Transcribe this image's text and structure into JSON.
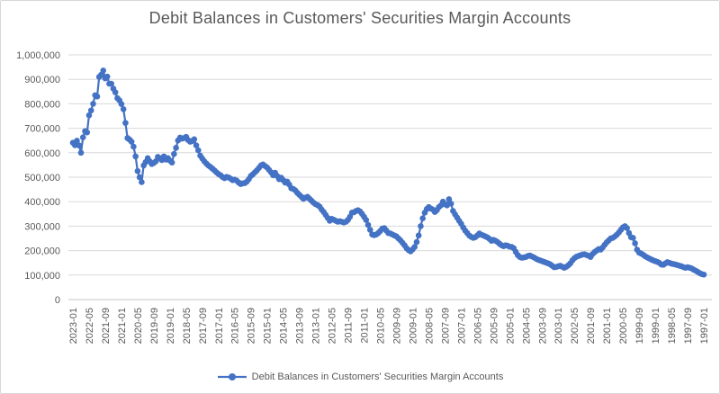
{
  "title": "Debit Balances in Customers' Securities Margin Accounts",
  "legend": {
    "label": "Debit Balances in Customers' Securities Margin Accounts"
  },
  "colors": {
    "series": "#4472C4",
    "gridline": "#d9d9d9",
    "axis_line": "#c6c6c6",
    "text": "#595959",
    "background": "#ffffff"
  },
  "chart_data": {
    "type": "line",
    "title": "Debit Balances in Customers' Securities Margin Accounts",
    "xlabel": "",
    "ylabel": "",
    "ylim": [
      0,
      1000000
    ],
    "grid": "horizontal",
    "legend_position": "bottom",
    "x_order_note": "monthly values, reverse-chronological left to right",
    "x_start": "2023-01",
    "x_end": "1997-01",
    "x_step_months": -1,
    "x_tick_every": 8,
    "x_tick_labels": [
      "2023-01",
      "2022-05",
      "2021-09",
      "2021-01",
      "2020-05",
      "2019-09",
      "2019-01",
      "2018-05",
      "2017-09",
      "2017-01",
      "2016-05",
      "2015-09",
      "2015-01",
      "2014-05",
      "2013-09",
      "2013-01",
      "2012-05",
      "2011-09",
      "2011-01",
      "2010-05",
      "2009-09",
      "2009-01",
      "2008-05",
      "2007-09",
      "2007-01",
      "2006-05",
      "2005-09",
      "2005-01",
      "2004-05",
      "2003-09",
      "2003-01",
      "2002-05",
      "2001-09",
      "2001-01",
      "2000-05",
      "1999-09",
      "1999-01",
      "1998-05",
      "1997-09",
      "1997-01"
    ],
    "y_tick_labels": [
      "0",
      "100,000",
      "200,000",
      "300,000",
      "400,000",
      "500,000",
      "600,000",
      "700,000",
      "800,000",
      "900,000",
      "1,000,000"
    ],
    "values": [
      641000,
      631000,
      649000,
      630000,
      600000,
      663000,
      688000,
      683000,
      753000,
      773000,
      800000,
      835000,
      830000,
      910000,
      919000,
      936000,
      904000,
      911000,
      882000,
      882000,
      862000,
      847000,
      823000,
      814000,
      799000,
      778000,
      722000,
      660000,
      654000,
      645000,
      625000,
      585000,
      525000,
      500000,
      480000,
      548000,
      562000,
      578000,
      565000,
      554000,
      558000,
      565000,
      583000,
      578000,
      570000,
      585000,
      572000,
      578000,
      568000,
      560000,
      595000,
      620000,
      650000,
      662000,
      658000,
      660000,
      665000,
      652000,
      645000,
      648000,
      655000,
      630000,
      610000,
      588000,
      576000,
      565000,
      556000,
      548000,
      542000,
      535000,
      528000,
      520000,
      513000,
      508000,
      501000,
      496000,
      501000,
      499000,
      494000,
      488000,
      490000,
      486000,
      478000,
      472000,
      475000,
      476000,
      482000,
      492000,
      505000,
      512000,
      520000,
      528000,
      538000,
      548000,
      552000,
      546000,
      540000,
      530000,
      520000,
      508000,
      518000,
      505000,
      492000,
      498000,
      488000,
      478000,
      482000,
      470000,
      455000,
      452000,
      446000,
      436000,
      428000,
      420000,
      412000,
      416000,
      420000,
      412000,
      404000,
      396000,
      390000,
      386000,
      380000,
      368000,
      358000,
      346000,
      334000,
      322000,
      330000,
      326000,
      322000,
      318000,
      320000,
      318000,
      315000,
      318000,
      325000,
      338000,
      355000,
      357000,
      362000,
      365000,
      360000,
      350000,
      338000,
      325000,
      305000,
      285000,
      266000,
      263000,
      266000,
      272000,
      280000,
      290000,
      292000,
      282000,
      272000,
      270000,
      266000,
      262000,
      258000,
      250000,
      242000,
      232000,
      222000,
      210000,
      202000,
      197000,
      205000,
      215000,
      235000,
      262000,
      300000,
      332000,
      355000,
      370000,
      378000,
      372000,
      368000,
      358000,
      365000,
      378000,
      385000,
      400000,
      390000,
      385000,
      410000,
      392000,
      362000,
      348000,
      335000,
      322000,
      310000,
      295000,
      282000,
      272000,
      262000,
      256000,
      252000,
      255000,
      262000,
      270000,
      265000,
      262000,
      258000,
      254000,
      248000,
      240000,
      244000,
      240000,
      235000,
      228000,
      222000,
      218000,
      222000,
      220000,
      216000,
      215000,
      210000,
      195000,
      182000,
      174000,
      171000,
      172000,
      174000,
      178000,
      180000,
      176000,
      172000,
      167000,
      163000,
      160000,
      157000,
      154000,
      151000,
      148000,
      144000,
      138000,
      132000,
      133000,
      136000,
      138000,
      134000,
      130000,
      134000,
      140000,
      148000,
      160000,
      169000,
      175000,
      178000,
      181000,
      184000,
      185000,
      182000,
      179000,
      174000,
      186000,
      194000,
      200000,
      206000,
      204000,
      213000,
      224000,
      234000,
      242000,
      250000,
      252000,
      258000,
      265000,
      274000,
      285000,
      295000,
      300000,
      292000,
      272000,
      255000,
      252000,
      230000,
      204000,
      192000,
      188000,
      183000,
      177000,
      172000,
      168000,
      164000,
      160000,
      157000,
      154000,
      150000,
      143000,
      142000,
      148000,
      153000,
      150000,
      147000,
      145000,
      143000,
      141000,
      138000,
      136000,
      132000,
      130000,
      132000,
      130000,
      127000,
      122000,
      118000,
      113000,
      108000,
      104000,
      102000
    ]
  }
}
